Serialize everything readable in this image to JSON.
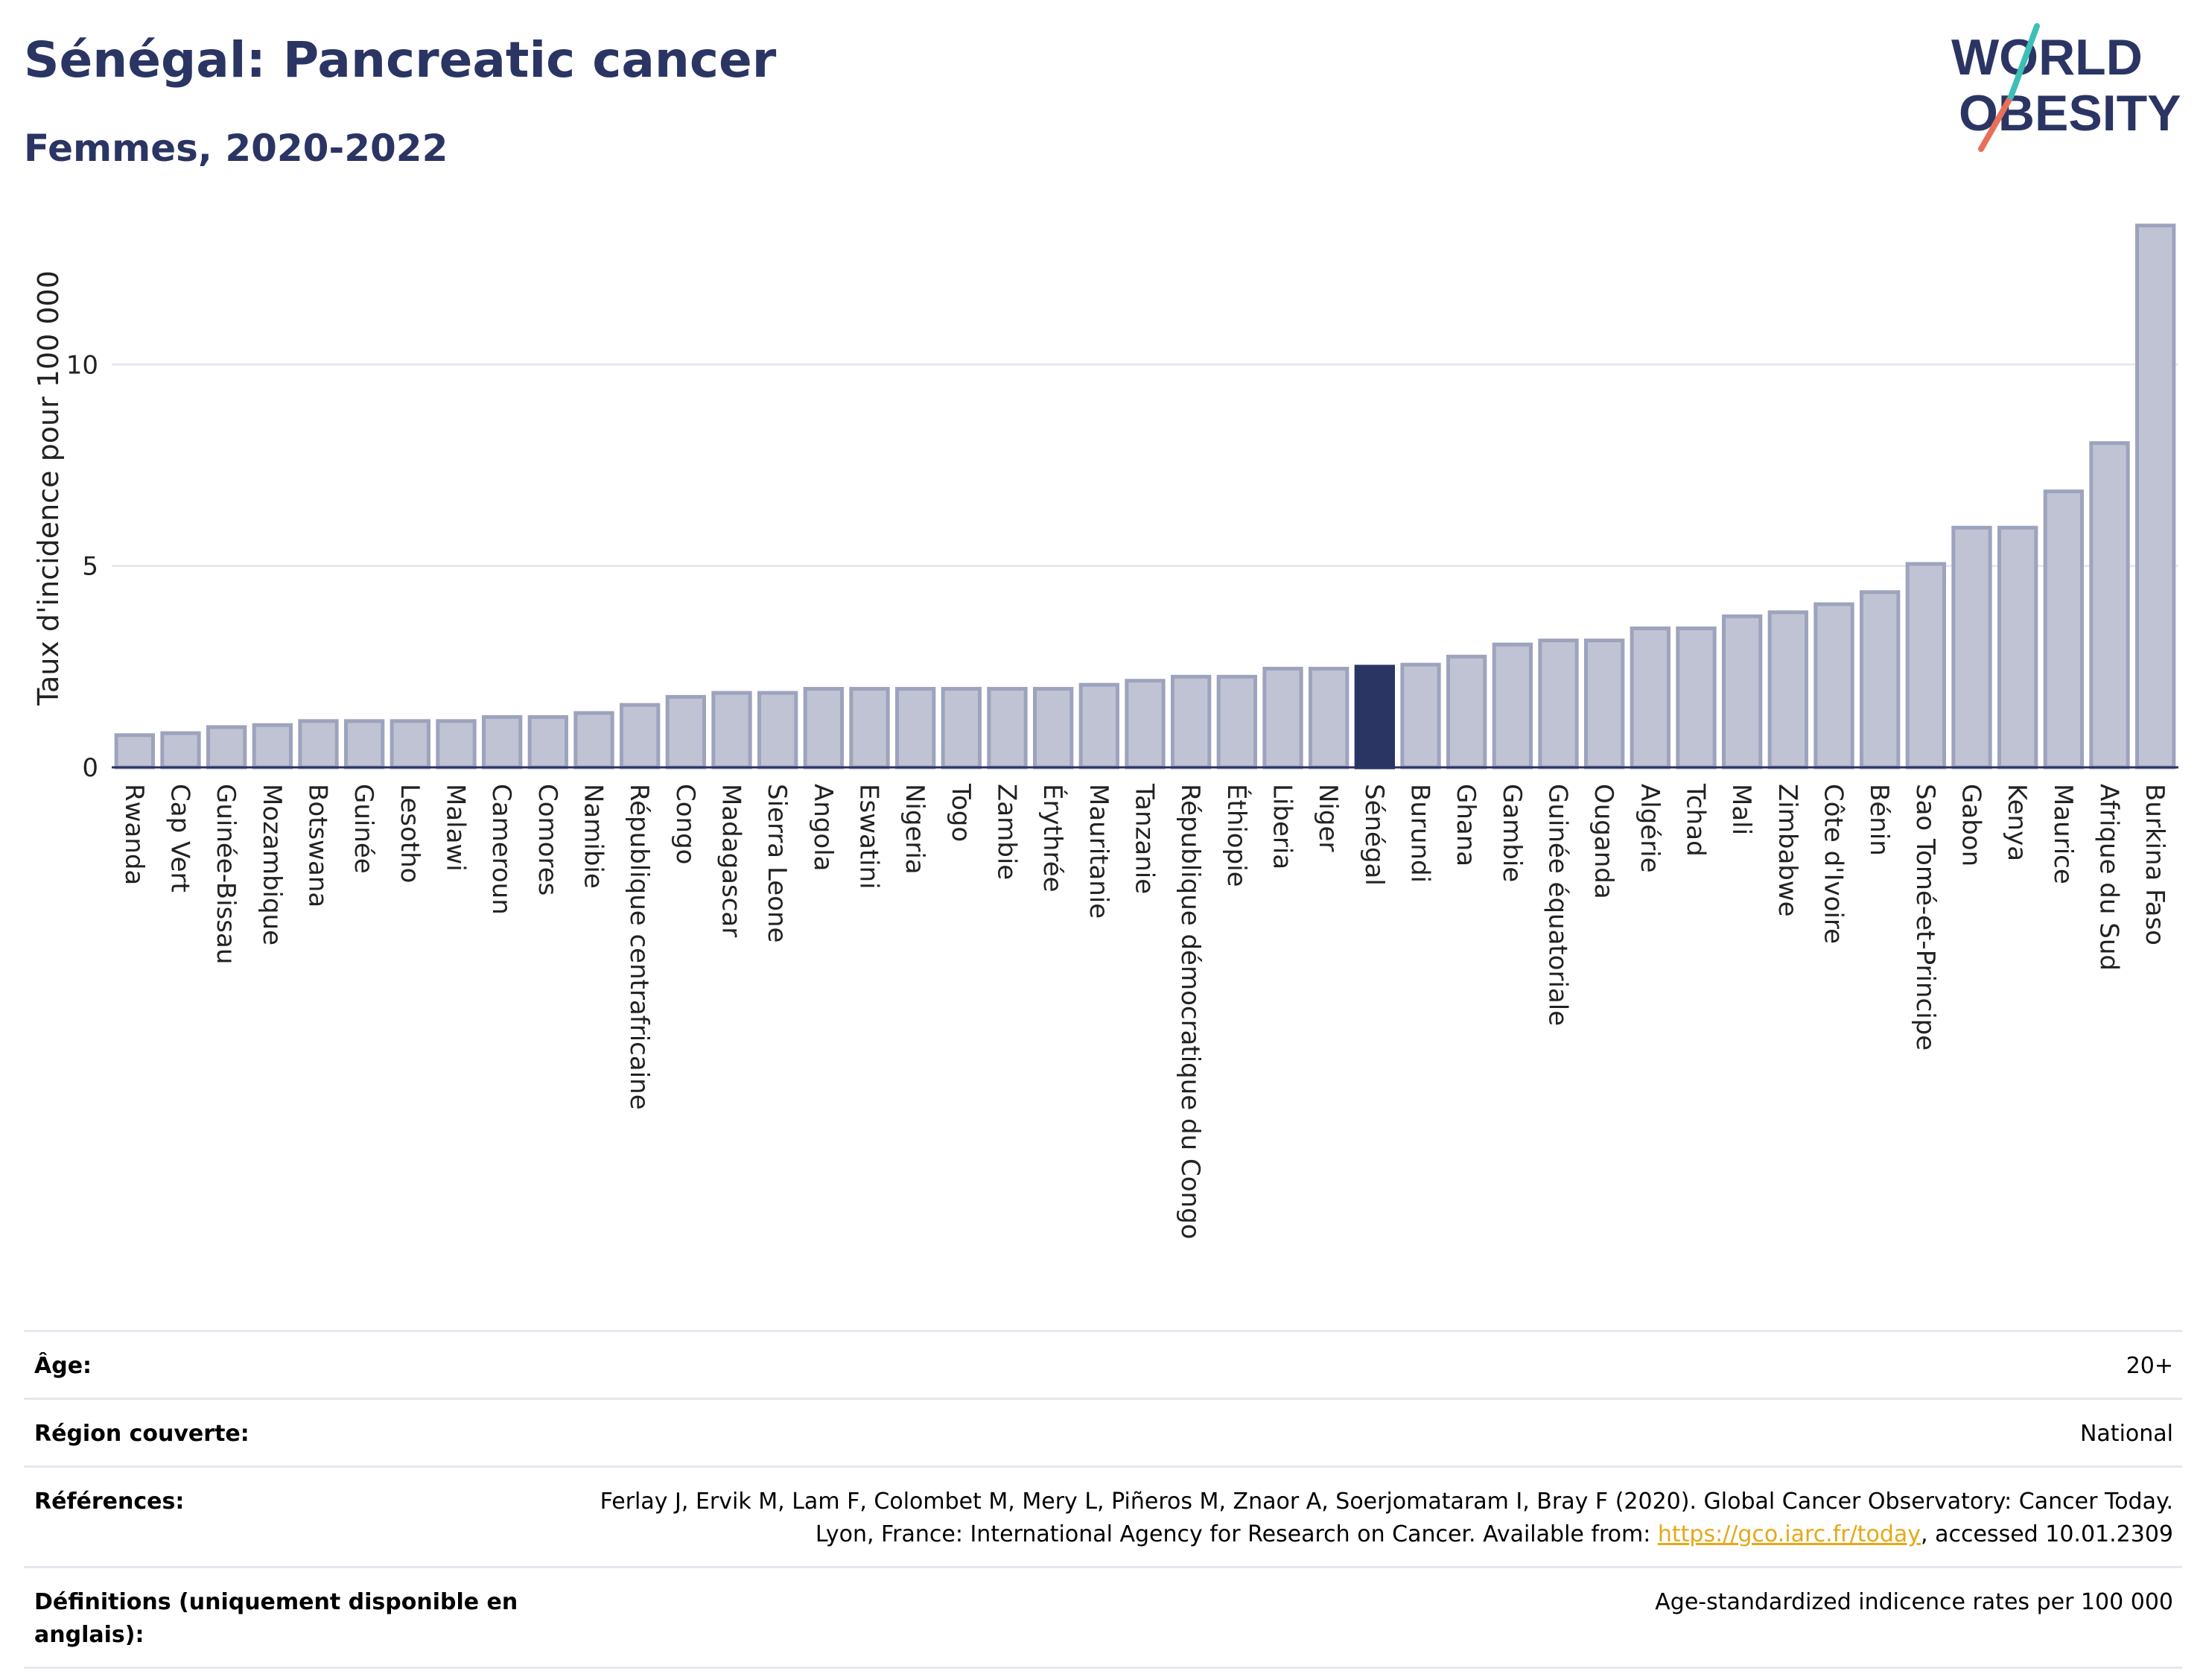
{
  "header": {
    "title": "Sénégal: Pancreatic cancer",
    "subtitle": "Femmes, 2020-2022"
  },
  "logo": {
    "line1": "WORLD",
    "line2": "OBESITY"
  },
  "colors": {
    "bar": "#bfc3d3",
    "bar_border": "#9ea3bd",
    "highlight": "#2b3563",
    "title": "#2b3563",
    "grid": "#e6e8ef",
    "link": "#e6a817"
  },
  "chart_data": {
    "type": "bar",
    "ylabel": "Taux d'incidence pour 100 000",
    "ylim": [
      0,
      13.5
    ],
    "yticks": [
      0,
      5,
      10
    ],
    "highlight": "Sénégal",
    "grid": true,
    "categories": [
      "Rwanda",
      "Cap Vert",
      "Guinée-Bissau",
      "Mozambique",
      "Botswana",
      "Guinée",
      "Lesotho",
      "Malawi",
      "Cameroun",
      "Comores",
      "Namibie",
      "République centrafricaine",
      "Congo",
      "Madagascar",
      "Sierra Leone",
      "Angola",
      "Eswatini",
      "Nigeria",
      "Togo",
      "Zambie",
      "Érythrée",
      "Mauritanie",
      "Tanzanie",
      "République démocratique du Congo",
      "Éthiopie",
      "Liberia",
      "Niger",
      "Sénégal",
      "Burundi",
      "Ghana",
      "Gambie",
      "Guinée équatoriale",
      "Ouganda",
      "Algérie",
      "Tchad",
      "Mali",
      "Zimbabwe",
      "Côte d'Ivoire",
      "Bénin",
      "Sao Tomé-et-Principe",
      "Gabon",
      "Kenya",
      "Maurice",
      "Afrique du Sud",
      "Burkina Faso"
    ],
    "values": [
      0.8,
      0.85,
      1.0,
      1.05,
      1.15,
      1.15,
      1.15,
      1.15,
      1.25,
      1.25,
      1.35,
      1.55,
      1.75,
      1.85,
      1.85,
      1.95,
      1.95,
      1.95,
      1.95,
      1.95,
      1.95,
      2.05,
      2.15,
      2.25,
      2.25,
      2.45,
      2.45,
      2.5,
      2.55,
      2.75,
      3.05,
      3.15,
      3.15,
      3.45,
      3.45,
      3.75,
      3.85,
      4.05,
      4.35,
      5.05,
      5.95,
      5.95,
      6.85,
      8.05,
      13.45
    ]
  },
  "meta": [
    {
      "label": "Âge:",
      "value": "20+"
    },
    {
      "label": "Région couverte:",
      "value": "National"
    },
    {
      "label": "Références:",
      "value_pre": "Ferlay J, Ervik M, Lam F, Colombet M, Mery L, Piñeros M, Znaor A, Soerjomataram I, Bray F (2020). Global Cancer Observatory: Cancer Today. Lyon, France: International Agency for Research on Cancer. Available from: ",
      "link": "https://gco.iarc.fr/today",
      "value_post": ", accessed 10.01.2309"
    },
    {
      "label": "Définitions (uniquement disponible en anglais):",
      "value": "Age-standardized indicence rates per 100 000"
    }
  ]
}
